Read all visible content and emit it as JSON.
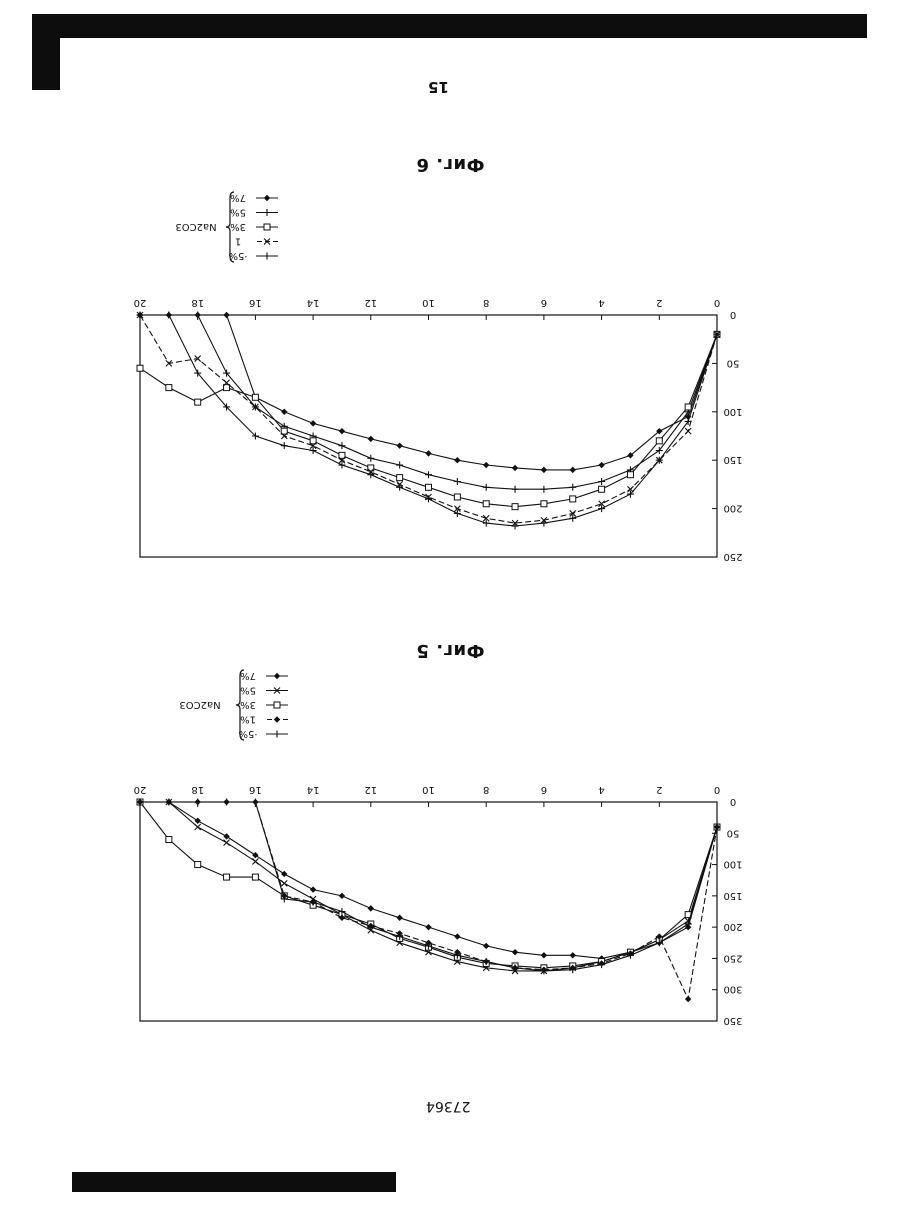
{
  "page": {
    "page_number": "15",
    "doc_number": "27364"
  },
  "chart_data": [
    {
      "type": "line",
      "title": "Фиг. 5",
      "legend_group_label": "Na2CO3",
      "xlim": [
        0,
        20
      ],
      "ylim": [
        0,
        350
      ],
      "xticks": [
        0,
        2,
        4,
        6,
        8,
        10,
        12,
        14,
        16,
        18,
        20
      ],
      "yticks": [
        0,
        50,
        100,
        150,
        200,
        250,
        300,
        350
      ],
      "x": [
        0,
        1,
        2,
        3,
        4,
        5,
        6,
        7,
        8,
        9,
        10,
        11,
        12,
        13,
        14,
        15,
        16,
        17,
        18,
        19,
        20
      ],
      "series": [
        {
          "name": "7%",
          "marker": "diamond",
          "values": [
            40,
            200,
            225,
            240,
            250,
            245,
            245,
            240,
            230,
            215,
            200,
            185,
            170,
            150,
            140,
            115,
            85,
            55,
            30,
            0,
            0
          ]
        },
        {
          "name": "5%",
          "marker": "x",
          "values": [
            40,
            190,
            220,
            240,
            255,
            265,
            270,
            270,
            265,
            255,
            240,
            225,
            205,
            180,
            155,
            130,
            95,
            65,
            40,
            0,
            0
          ]
        },
        {
          "name": "3%",
          "marker": "square",
          "values": [
            40,
            180,
            220,
            240,
            255,
            262,
            265,
            262,
            258,
            248,
            232,
            218,
            195,
            180,
            165,
            150,
            120,
            120,
            100,
            60,
            0
          ]
        },
        {
          "name": "1%",
          "marker": "diamond",
          "values": [
            40,
            315,
            215,
            242,
            258,
            265,
            268,
            265,
            255,
            240,
            225,
            210,
            198,
            185,
            160,
            150,
            0,
            0,
            0,
            0,
            0
          ]
        },
        {
          "name": "·5%",
          "marker": "plus",
          "values": [
            40,
            195,
            225,
            245,
            260,
            268,
            270,
            265,
            255,
            245,
            230,
            215,
            200,
            175,
            160,
            155,
            0,
            0,
            0,
            0,
            0
          ]
        }
      ]
    },
    {
      "type": "line",
      "title": "Фиг. 6",
      "legend_group_label": "Na2CO3",
      "xlim": [
        0,
        20
      ],
      "ylim": [
        0,
        250
      ],
      "xticks": [
        0,
        2,
        4,
        6,
        8,
        10,
        12,
        14,
        16,
        18,
        20
      ],
      "yticks": [
        0,
        50,
        100,
        150,
        200,
        250
      ],
      "x": [
        0,
        1,
        2,
        3,
        4,
        5,
        6,
        7,
        8,
        9,
        10,
        11,
        12,
        13,
        14,
        15,
        16,
        17,
        18,
        19,
        20
      ],
      "series": [
        {
          "name": "7%",
          "marker": "diamond",
          "values": [
            20,
            105,
            120,
            145,
            155,
            160,
            160,
            158,
            155,
            150,
            143,
            135,
            128,
            120,
            112,
            100,
            85,
            0,
            0,
            0,
            0
          ]
        },
        {
          "name": "5%",
          "marker": "plus",
          "values": [
            20,
            100,
            140,
            160,
            172,
            178,
            180,
            180,
            178,
            172,
            165,
            155,
            148,
            135,
            125,
            115,
            95,
            60,
            0,
            0,
            0
          ]
        },
        {
          "name": "3%",
          "marker": "square",
          "values": [
            20,
            95,
            130,
            165,
            180,
            190,
            195,
            198,
            195,
            188,
            178,
            168,
            158,
            145,
            130,
            120,
            85,
            75,
            90,
            75,
            55
          ]
        },
        {
          "name": "1",
          "marker": "x",
          "values": [
            20,
            120,
            150,
            180,
            195,
            205,
            212,
            215,
            210,
            200,
            188,
            175,
            162,
            150,
            135,
            125,
            95,
            70,
            45,
            50,
            0
          ]
        },
        {
          "name": "·5%",
          "marker": "plus",
          "values": [
            20,
            110,
            150,
            185,
            200,
            210,
            215,
            218,
            215,
            205,
            190,
            178,
            165,
            155,
            140,
            135,
            125,
            95,
            60,
            0,
            0
          ]
        }
      ]
    }
  ]
}
